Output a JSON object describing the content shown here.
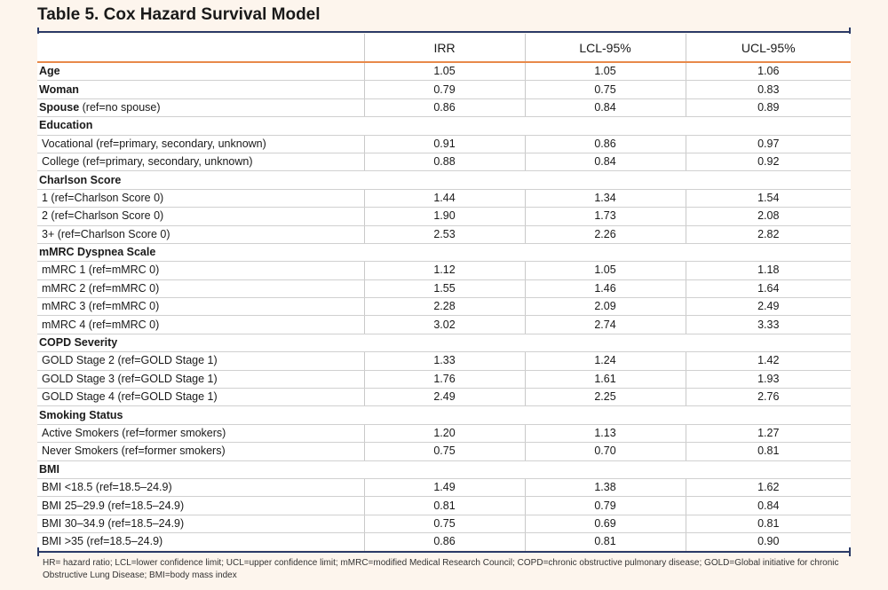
{
  "title": "Table 5. Cox Hazard Survival Model",
  "columns": [
    "",
    "IRR",
    "LCL-95%",
    "UCL-95%"
  ],
  "rows": [
    {
      "type": "var",
      "label_bold": "Age",
      "label_rest": "",
      "irr": "1.05",
      "lcl": "1.05",
      "ucl": "1.06"
    },
    {
      "type": "var",
      "label_bold": "Woman",
      "label_rest": "",
      "irr": "0.79",
      "lcl": "0.75",
      "ucl": "0.83"
    },
    {
      "type": "var",
      "label_bold": "Spouse",
      "label_rest": " (ref=no spouse)",
      "irr": "0.86",
      "lcl": "0.84",
      "ucl": "0.89"
    },
    {
      "type": "group",
      "label_bold": "Education"
    },
    {
      "type": "sub",
      "label": "Vocational (ref=primary, secondary, unknown)",
      "irr": "0.91",
      "lcl": "0.86",
      "ucl": "0.97"
    },
    {
      "type": "sub",
      "label": "College (ref=primary, secondary, unknown)",
      "irr": "0.88",
      "lcl": "0.84",
      "ucl": "0.92"
    },
    {
      "type": "group",
      "label_bold": "Charlson Score"
    },
    {
      "type": "sub",
      "label": "1 (ref=Charlson Score 0)",
      "irr": "1.44",
      "lcl": "1.34",
      "ucl": "1.54"
    },
    {
      "type": "sub",
      "label": "2 (ref=Charlson Score 0)",
      "irr": "1.90",
      "lcl": "1.73",
      "ucl": "2.08"
    },
    {
      "type": "sub",
      "label": "3+ (ref=Charlson Score 0)",
      "irr": "2.53",
      "lcl": "2.26",
      "ucl": "2.82"
    },
    {
      "type": "group",
      "label_bold": "mMRC Dyspnea Scale"
    },
    {
      "type": "sub",
      "label": "mMRC 1 (ref=mMRC 0)",
      "irr": "1.12",
      "lcl": "1.05",
      "ucl": "1.18"
    },
    {
      "type": "sub",
      "label": "mMRC 2 (ref=mMRC 0)",
      "irr": "1.55",
      "lcl": "1.46",
      "ucl": "1.64"
    },
    {
      "type": "sub",
      "label": "mMRC 3 (ref=mMRC 0)",
      "irr": "2.28",
      "lcl": "2.09",
      "ucl": "2.49"
    },
    {
      "type": "sub",
      "label": "mMRC 4 (ref=mMRC 0)",
      "irr": "3.02",
      "lcl": "2.74",
      "ucl": "3.33"
    },
    {
      "type": "group",
      "label_bold": "COPD Severity"
    },
    {
      "type": "sub",
      "label": "GOLD Stage 2 (ref=GOLD Stage 1)",
      "irr": "1.33",
      "lcl": "1.24",
      "ucl": "1.42"
    },
    {
      "type": "sub",
      "label": "GOLD Stage 3 (ref=GOLD Stage 1)",
      "irr": "1.76",
      "lcl": "1.61",
      "ucl": "1.93"
    },
    {
      "type": "sub",
      "label": "GOLD Stage 4 (ref=GOLD Stage 1)",
      "irr": "2.49",
      "lcl": "2.25",
      "ucl": "2.76"
    },
    {
      "type": "group",
      "label_bold": "Smoking Status"
    },
    {
      "type": "sub",
      "label": "Active Smokers (ref=former smokers)",
      "irr": "1.20",
      "lcl": "1.13",
      "ucl": "1.27"
    },
    {
      "type": "sub",
      "label": "Never Smokers (ref=former smokers)",
      "irr": "0.75",
      "lcl": "0.70",
      "ucl": "0.81"
    },
    {
      "type": "group",
      "label_bold": "BMI"
    },
    {
      "type": "sub",
      "label": "BMI <18.5 (ref=18.5–24.9)",
      "irr": "1.49",
      "lcl": "1.38",
      "ucl": "1.62"
    },
    {
      "type": "sub",
      "label": "BMI 25–29.9 (ref=18.5–24.9)",
      "irr": "0.81",
      "lcl": "0.79",
      "ucl": "0.84"
    },
    {
      "type": "sub",
      "label": "BMI 30–34.9 (ref=18.5–24.9)",
      "irr": "0.75",
      "lcl": "0.69",
      "ucl": "0.81"
    },
    {
      "type": "sub",
      "label": "BMI >35 (ref=18.5–24.9)",
      "irr": "0.86",
      "lcl": "0.81",
      "ucl": "0.90"
    }
  ],
  "footnote": "HR= hazard ratio; LCL=lower confidence limit; UCL=upper confidence limit; mMRC=modified Medical Research Council; COPD=chronic obstructive pulmonary disease; GOLD=Global initiative for chronic Obstructive Lung Disease; BMI=body mass index",
  "colors": {
    "accent_line": "#e8894a",
    "rule": "#2b3a67",
    "background": "#fdf5ed"
  }
}
